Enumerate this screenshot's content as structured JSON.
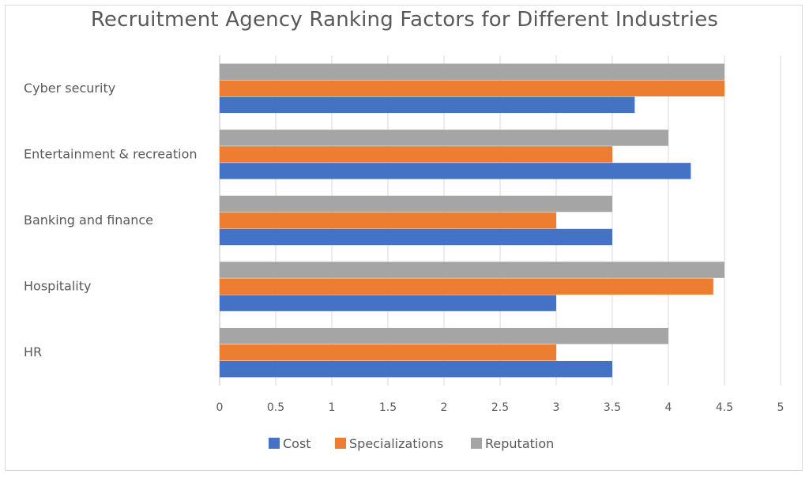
{
  "chart_data": {
    "type": "bar",
    "orientation": "horizontal",
    "title": "Recruitment Agency Ranking Factors for Different Industries",
    "categories": [
      "Cyber security",
      "Entertainment & recreation",
      "Banking and finance",
      "Hospitality",
      "HR"
    ],
    "series": [
      {
        "name": "Cost",
        "color": "#4472c4",
        "values": [
          3.7,
          4.2,
          3.5,
          3.0,
          3.5
        ]
      },
      {
        "name": "Specializations",
        "color": "#ed7d31",
        "values": [
          4.5,
          3.5,
          3.0,
          4.4,
          3.0
        ]
      },
      {
        "name": "Reputation",
        "color": "#a5a5a5",
        "values": [
          4.5,
          4.0,
          3.5,
          4.5,
          4.0
        ]
      }
    ],
    "x_ticks": [
      "0",
      "0.5",
      "1",
      "1.5",
      "2",
      "2.5",
      "3",
      "3.5",
      "4",
      "4.5",
      "5"
    ],
    "xlim": [
      0,
      5
    ],
    "grid": true,
    "legend_position": "bottom"
  }
}
